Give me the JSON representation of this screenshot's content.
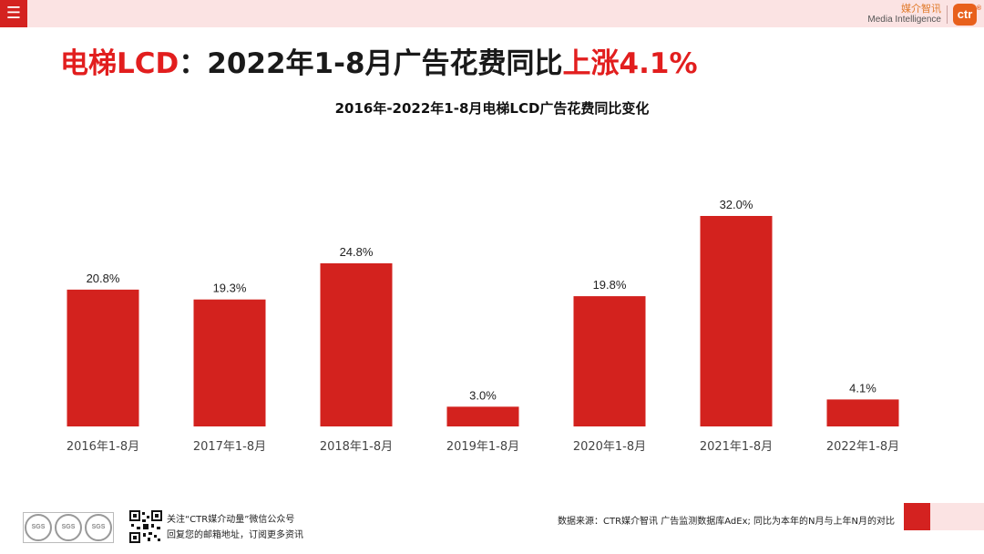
{
  "header": {
    "brand_cn": "媒介智讯",
    "brand_en": "Media Intelligence",
    "brand_logo": "ctr",
    "menu_icon": "menu-icon"
  },
  "headline": {
    "part1": "电梯LCD",
    "part2": "：2022年1-8月广告花费同比",
    "part3": "上涨4.1%"
  },
  "chart_data": {
    "type": "bar",
    "title": "2016年-2022年1-8月电梯LCD广告花费同比变化",
    "categories": [
      "2016年1-8月",
      "2017年1-8月",
      "2018年1-8月",
      "2019年1-8月",
      "2020年1-8月",
      "2021年1-8月",
      "2022年1-8月"
    ],
    "values": [
      20.8,
      19.3,
      24.8,
      3.0,
      19.8,
      32.0,
      4.1
    ],
    "labels": [
      "20.8%",
      "19.3%",
      "24.8%",
      "3.0%",
      "19.8%",
      "32.0%",
      "4.1%"
    ],
    "ylim": [
      0,
      32.0
    ],
    "bar_color": "#d3221e",
    "grid": false,
    "legend": "none"
  },
  "footer": {
    "seal_text": "SGS",
    "follow_line1": "关注“CTR媒介动量”微信公众号",
    "follow_line2": "回复您的邮箱地址，订阅更多资讯",
    "source": "数据来源：CTR媒介智讯 广告监测数据库AdEx;   同比为本年的N月与上年N月的对比"
  },
  "colors": {
    "accent": "#d42220",
    "pink": "#fbe3e3",
    "headline_red": "#e21e1e"
  }
}
